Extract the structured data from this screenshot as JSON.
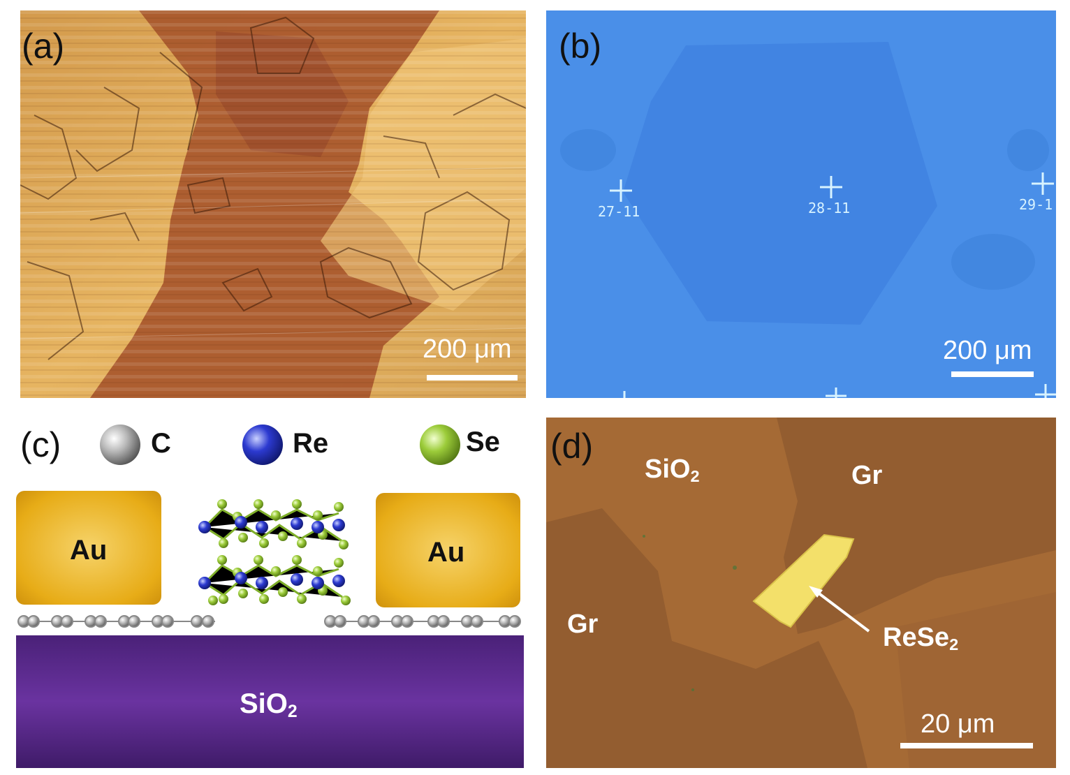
{
  "panels": {
    "a": {
      "label": "(a)",
      "scale": "200 μm"
    },
    "b": {
      "label": "(b)",
      "scale": "200 μm",
      "markers": [
        "27-11",
        "28-11",
        "29-1"
      ]
    },
    "c": {
      "label": "(c)",
      "legend": [
        "C",
        "Re",
        "Se"
      ],
      "contact_left": "Au",
      "contact_right": "Au",
      "substrate_main": "SiO",
      "substrate_sub": "2"
    },
    "d": {
      "label": "(d)",
      "sio2_main": "SiO",
      "sio2_sub": "2",
      "gr_top": "Gr",
      "gr_left": "Gr",
      "flake_main": "ReSe",
      "flake_sub": "2",
      "scale": "20 μm"
    }
  },
  "colors": {
    "gold": "#e7ac17",
    "substrate": "#5b2a8c",
    "carbon": "#9a9a9a",
    "rhenium": "#2a35c8",
    "selenium": "#9ccc3a",
    "optical_blue": "#4a8fe8",
    "optical_brown": "#a56a35"
  }
}
